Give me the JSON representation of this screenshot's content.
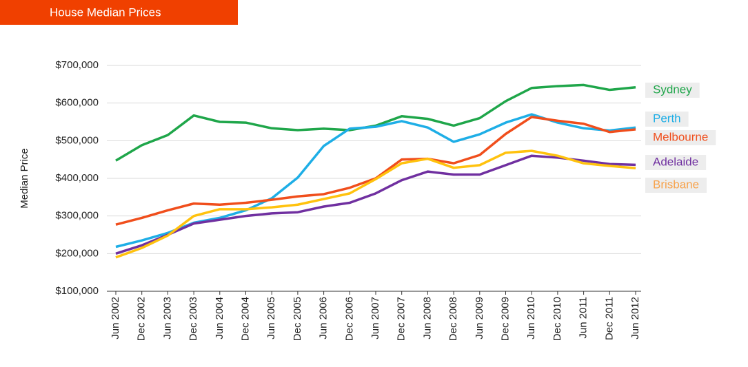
{
  "chart_data": {
    "type": "line",
    "title": "House Median Prices",
    "y_label": "Median Price",
    "categories": [
      "Jun 2002",
      "Dec 2002",
      "Jun 2003",
      "Dec 2003",
      "Jun 2004",
      "Dec 2004",
      "Jun 2005",
      "Dec 2005",
      "Jun 2006",
      "Dec 2006",
      "Jun 2007",
      "Dec 2007",
      "Jun 2008",
      "Dec 2008",
      "Jun 2009",
      "Dec 2009",
      "Jun 2010",
      "Dec 2010",
      "Jun 2011",
      "Dec 2011",
      "Jun 2012"
    ],
    "series": [
      {
        "name": "Sydney",
        "color": "#1fa64a",
        "label_color": "#1fa64a",
        "values": [
          447000,
          488000,
          515000,
          567000,
          550000,
          548000,
          533000,
          528000,
          532000,
          528000,
          540000,
          565000,
          558000,
          540000,
          560000,
          605000,
          640000,
          645000,
          648000,
          635000,
          642000
        ]
      },
      {
        "name": "Perth",
        "color": "#1eaee6",
        "label_color": "#1eaee6",
        "values": [
          218000,
          235000,
          255000,
          282000,
          295000,
          315000,
          347000,
          402000,
          486000,
          532000,
          537000,
          552000,
          535000,
          497000,
          517000,
          548000,
          570000,
          548000,
          533000,
          527000,
          535000
        ]
      },
      {
        "name": "Melbourne",
        "color": "#f04e1c",
        "label_color": "#f04e1c",
        "values": [
          277000,
          295000,
          315000,
          333000,
          330000,
          335000,
          343000,
          352000,
          358000,
          375000,
          400000,
          450000,
          452000,
          440000,
          462000,
          518000,
          563000,
          553000,
          545000,
          523000,
          530000
        ]
      },
      {
        "name": "Adelaide",
        "color": "#7030a0",
        "label_color": "#7030a0",
        "values": [
          200000,
          222000,
          250000,
          280000,
          290000,
          300000,
          307000,
          310000,
          325000,
          335000,
          360000,
          395000,
          418000,
          410000,
          410000,
          435000,
          460000,
          455000,
          447000,
          438000,
          436000
        ]
      },
      {
        "name": "Brisbane",
        "color": "#ffc20e",
        "label_color": "#f7a24b",
        "values": [
          190000,
          215000,
          248000,
          300000,
          318000,
          318000,
          323000,
          330000,
          345000,
          360000,
          398000,
          440000,
          452000,
          428000,
          435000,
          468000,
          473000,
          460000,
          440000,
          433000,
          427000
        ]
      }
    ],
    "ylim": [
      100000,
      700000
    ],
    "yticks": [
      {
        "value": 100000,
        "label": "$100,000"
      },
      {
        "value": 200000,
        "label": "$200,000"
      },
      {
        "value": 300000,
        "label": "$300,000"
      },
      {
        "value": 400000,
        "label": "$400,000"
      },
      {
        "value": 500000,
        "label": "$500,000"
      },
      {
        "value": 600000,
        "label": "$600,000"
      },
      {
        "value": 700000,
        "label": "$700,000"
      }
    ],
    "grid": true
  }
}
